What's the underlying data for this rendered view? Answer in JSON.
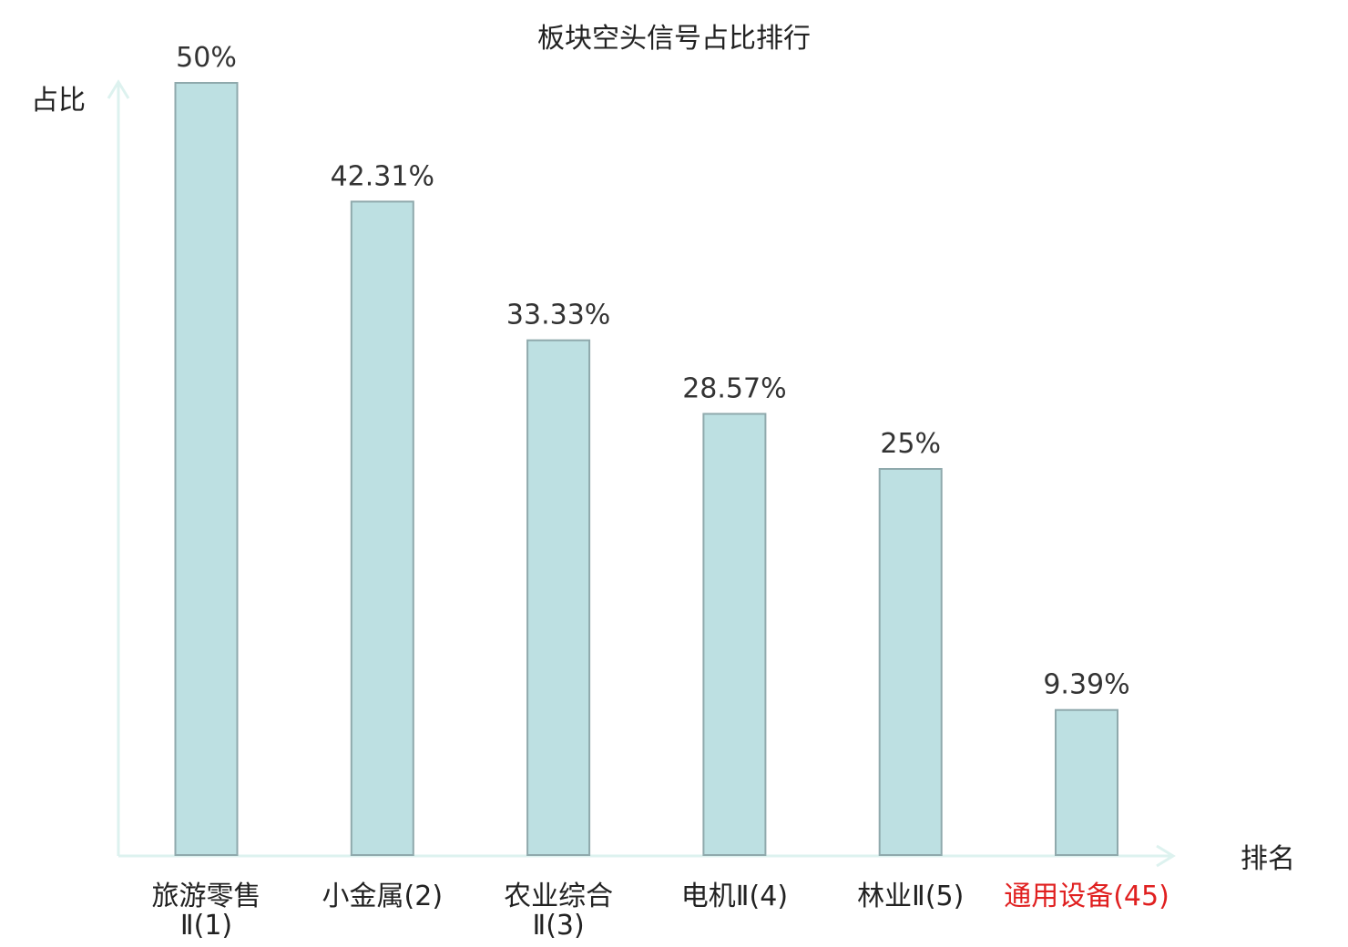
{
  "chart_data": {
    "type": "bar",
    "title": "板块空头信号占比排行",
    "ylabel": "占比",
    "xlabel": "排名",
    "categories": [
      {
        "lines": [
          "旅游零售",
          "Ⅱ(1)"
        ],
        "highlight": false
      },
      {
        "lines": [
          "小金属(2)"
        ],
        "highlight": false
      },
      {
        "lines": [
          "农业综合",
          "Ⅱ(3)"
        ],
        "highlight": false
      },
      {
        "lines": [
          "电机Ⅱ(4)"
        ],
        "highlight": false
      },
      {
        "lines": [
          "林业Ⅱ(5)"
        ],
        "highlight": false
      },
      {
        "lines": [
          "通用设备(45)"
        ],
        "highlight": true
      }
    ],
    "values": [
      50,
      42.31,
      33.33,
      28.57,
      25,
      9.39
    ],
    "value_labels": [
      "50%",
      "42.31%",
      "33.33%",
      "28.57%",
      "25%",
      "9.39%"
    ],
    "unit": "%",
    "ylim": [
      0,
      50
    ],
    "grid": false,
    "colors": {
      "bar_fill": "#bde0e2",
      "bar_stroke": "#8fa9ac",
      "axis": "#ddf2ef",
      "text": "#222222",
      "highlight": "#e02020"
    }
  }
}
